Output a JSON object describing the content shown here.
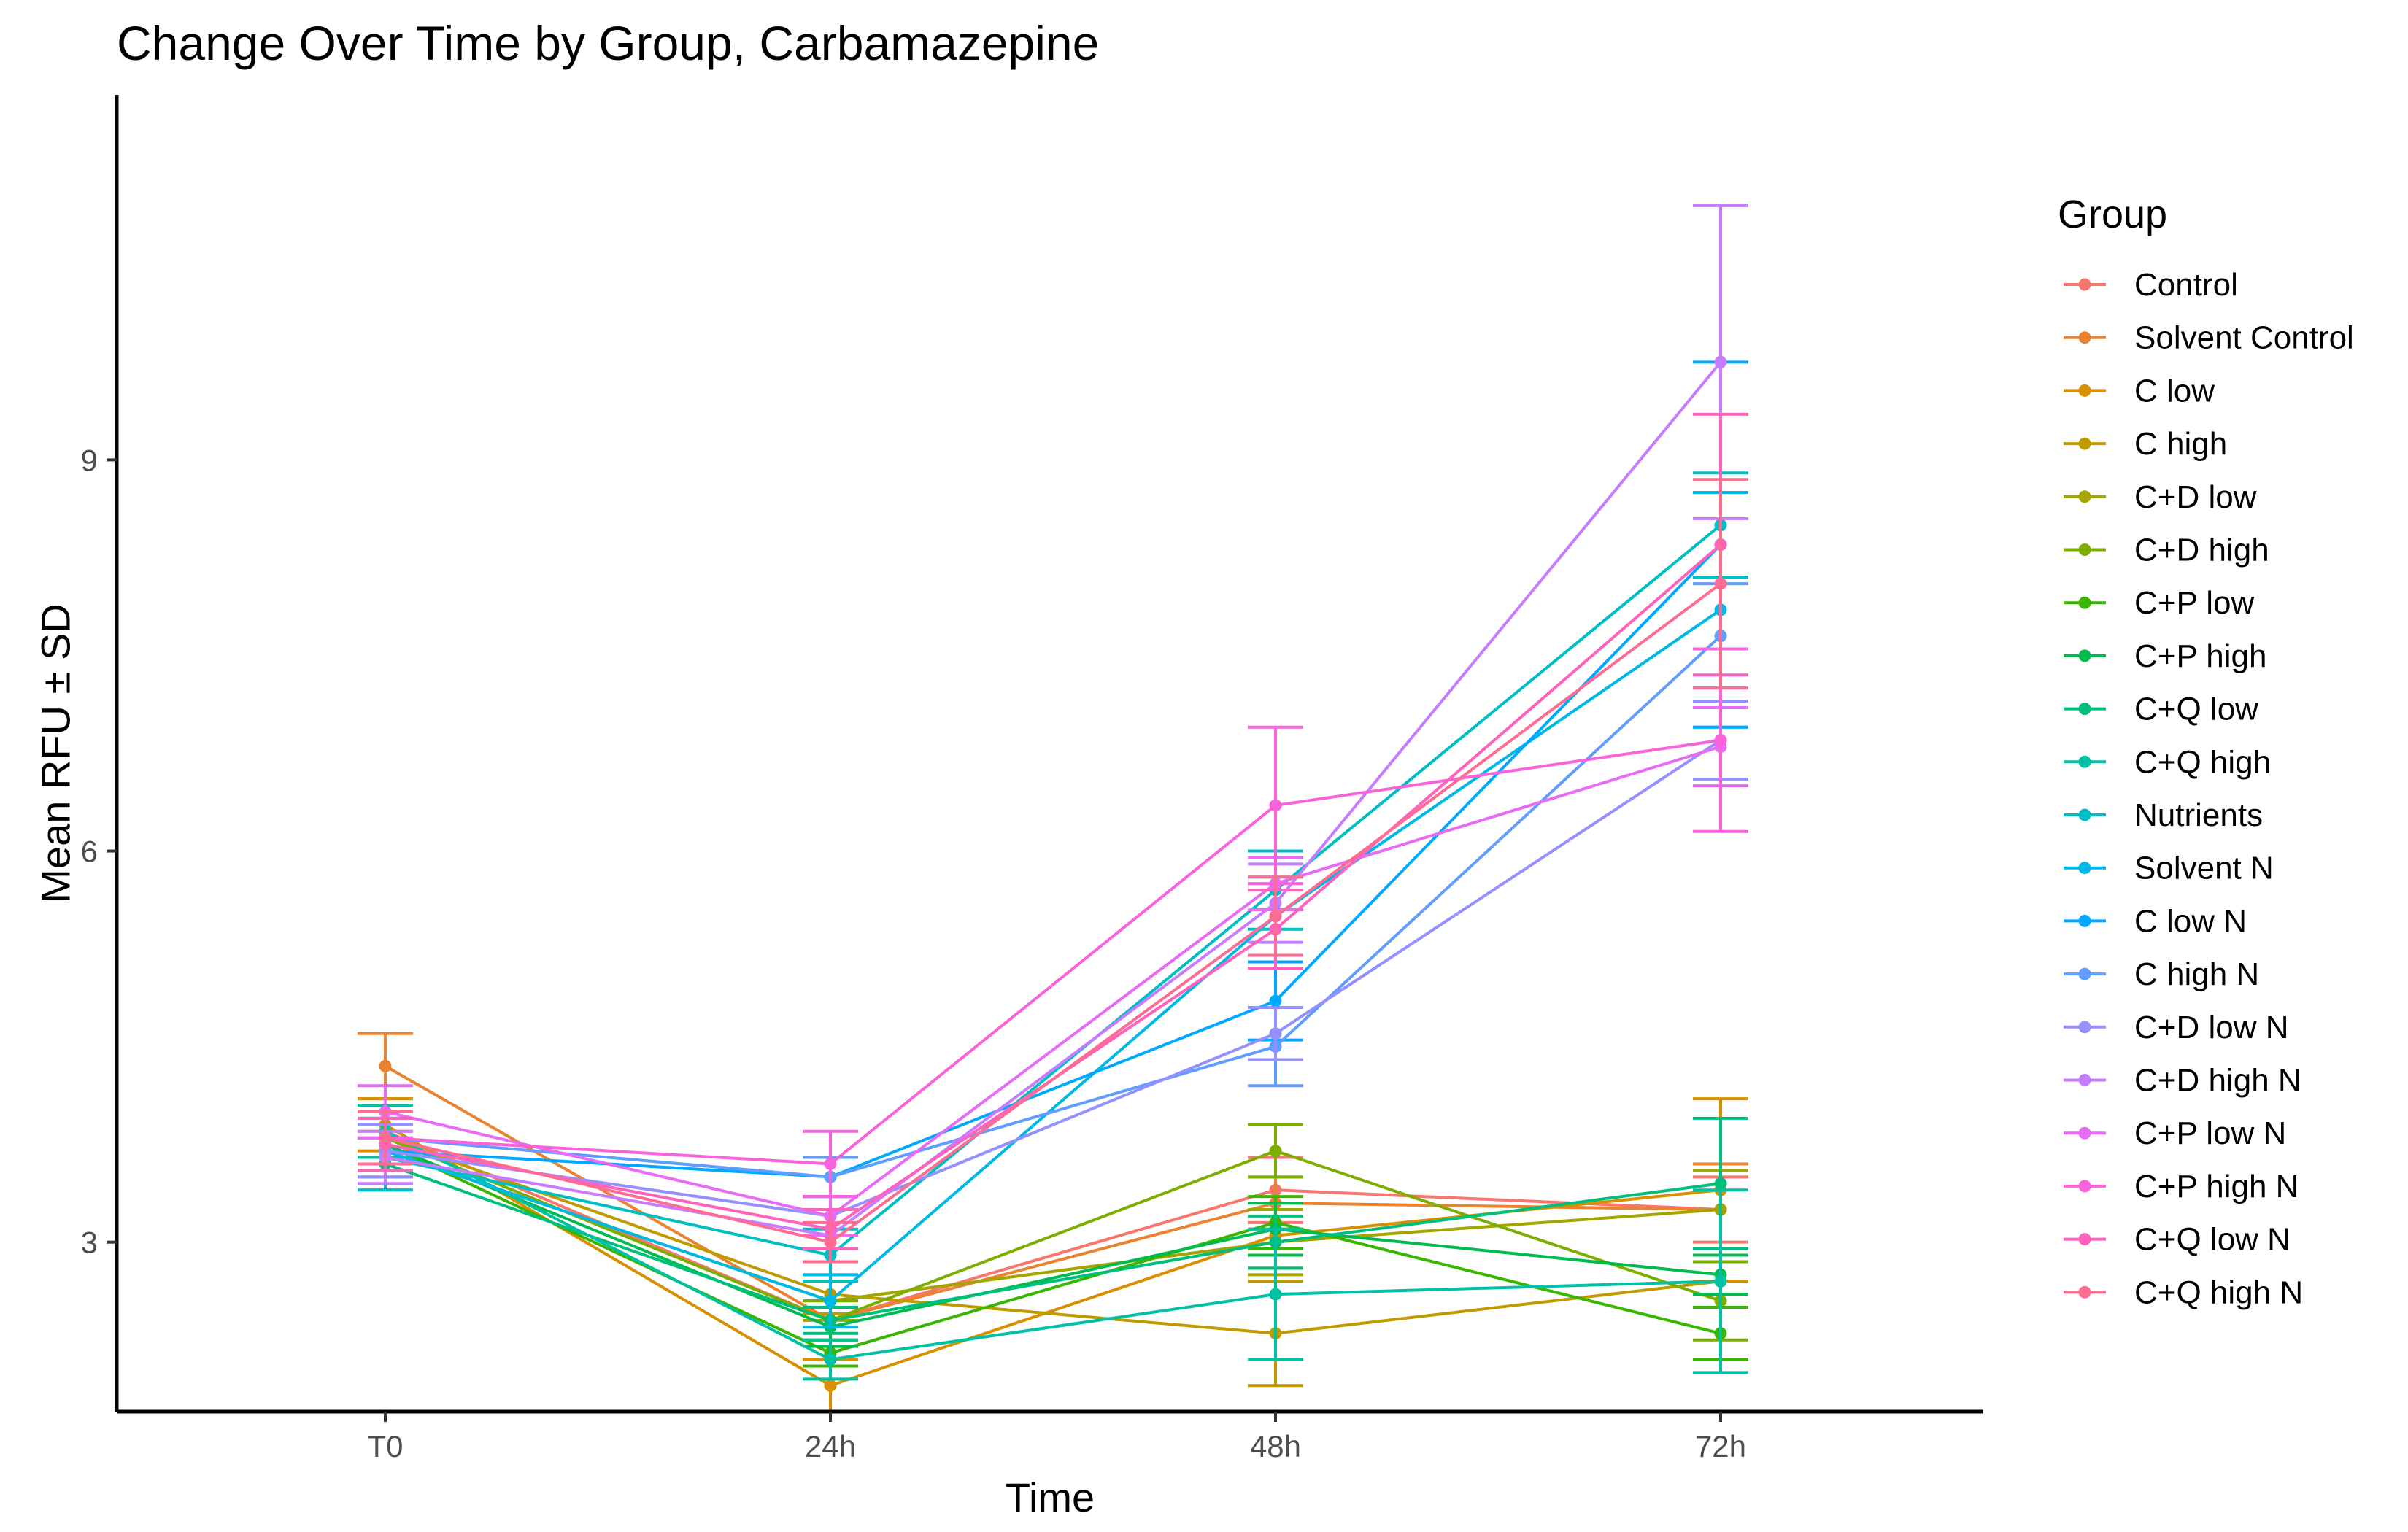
{
  "chart_data": {
    "type": "line",
    "title": "Change Over Time by Group, Carbamazepine",
    "xlabel": "Time",
    "ylabel": "Mean RFU ± SD",
    "categories": [
      "T0",
      "24h",
      "48h",
      "72h"
    ],
    "y_ticks": [
      3,
      6,
      9
    ],
    "ylim": [
      1.7,
      11.8
    ],
    "grid": false,
    "legend": {
      "title": "Group",
      "position": "right"
    },
    "series": [
      {
        "name": "Control",
        "color": "#F8766D",
        "values": [
          3.85,
          2.4,
          3.4,
          3.25
        ],
        "sd": [
          0.2,
          0.15,
          0.25,
          0.25
        ]
      },
      {
        "name": "Solvent Control",
        "color": "#EA8331",
        "values": [
          4.35,
          2.4,
          3.3,
          3.25
        ],
        "sd": [
          0.25,
          0.15,
          0.2,
          0.35
        ]
      },
      {
        "name": "C low",
        "color": "#D89000",
        "values": [
          3.9,
          1.9,
          3.05,
          3.4
        ],
        "sd": [
          0.2,
          0.2,
          0.25,
          0.7
        ]
      },
      {
        "name": "C high",
        "color": "#C09B00",
        "values": [
          3.8,
          2.6,
          2.3,
          2.7
        ],
        "sd": [
          0.2,
          0.15,
          0.4,
          0.2
        ]
      },
      {
        "name": "C+D low",
        "color": "#A3A500",
        "values": [
          3.7,
          2.55,
          3.0,
          3.25
        ],
        "sd": [
          0.15,
          0.15,
          0.25,
          0.3
        ]
      },
      {
        "name": "C+D high",
        "color": "#7CAE00",
        "values": [
          3.8,
          2.4,
          3.7,
          2.55
        ],
        "sd": [
          0.2,
          0.15,
          0.2,
          0.3
        ]
      },
      {
        "name": "C+P low",
        "color": "#39B600",
        "values": [
          3.75,
          2.15,
          3.15,
          2.3
        ],
        "sd": [
          0.15,
          0.1,
          0.2,
          0.2
        ]
      },
      {
        "name": "C+P high",
        "color": "#00BB4E",
        "values": [
          3.75,
          2.35,
          3.1,
          2.75
        ],
        "sd": [
          0.2,
          0.15,
          0.2,
          0.15
        ]
      },
      {
        "name": "C+Q low",
        "color": "#00BF7D",
        "values": [
          3.6,
          2.4,
          3.0,
          3.45
        ],
        "sd": [
          0.2,
          0.1,
          0.2,
          0.5
        ]
      },
      {
        "name": "C+Q high",
        "color": "#00C1A3",
        "values": [
          3.85,
          2.1,
          2.6,
          2.7
        ],
        "sd": [
          0.2,
          0.15,
          0.5,
          0.7
        ]
      },
      {
        "name": "Nutrients",
        "color": "#00BFC4",
        "values": [
          3.65,
          2.9,
          5.7,
          8.5
        ],
        "sd": [
          0.25,
          0.2,
          0.3,
          0.4
        ]
      },
      {
        "name": "Solvent N",
        "color": "#00B8E5",
        "values": [
          3.7,
          2.55,
          5.5,
          7.85
        ],
        "sd": [
          0.2,
          0.2,
          0.3,
          0.9
        ]
      },
      {
        "name": "C low N",
        "color": "#00A9FF",
        "values": [
          3.7,
          3.5,
          4.85,
          8.35
        ],
        "sd": [
          0.2,
          0.15,
          0.3,
          1.4
        ]
      },
      {
        "name": "C high N",
        "color": "#619CFF",
        "values": [
          3.8,
          3.5,
          4.5,
          7.65
        ],
        "sd": [
          0.2,
          0.15,
          0.3,
          0.4
        ]
      },
      {
        "name": "C+D low N",
        "color": "#9590FF",
        "values": [
          3.7,
          3.2,
          4.6,
          6.85
        ],
        "sd": [
          0.2,
          0.15,
          0.2,
          0.3
        ]
      },
      {
        "name": "C+D high N",
        "color": "#C77CFF",
        "values": [
          3.65,
          3.05,
          5.6,
          9.75
        ],
        "sd": [
          0.2,
          0.2,
          0.3,
          1.2
        ]
      },
      {
        "name": "C+P low N",
        "color": "#E76BF3",
        "values": [
          4.0,
          3.2,
          5.75,
          6.8
        ],
        "sd": [
          0.2,
          0.15,
          0.2,
          0.3
        ]
      },
      {
        "name": "C+P high N",
        "color": "#FA62DB",
        "values": [
          3.8,
          3.6,
          6.35,
          6.85
        ],
        "sd": [
          0.2,
          0.25,
          0.6,
          0.7
        ]
      },
      {
        "name": "C+Q low N",
        "color": "#FF62BC",
        "values": [
          3.75,
          3.1,
          5.4,
          8.35
        ],
        "sd": [
          0.2,
          0.15,
          0.3,
          1.0
        ]
      },
      {
        "name": "C+Q high N",
        "color": "#FF6C91",
        "values": [
          3.8,
          3.0,
          5.5,
          8.05
        ],
        "sd": [
          0.2,
          0.15,
          0.3,
          0.8
        ]
      }
    ]
  }
}
